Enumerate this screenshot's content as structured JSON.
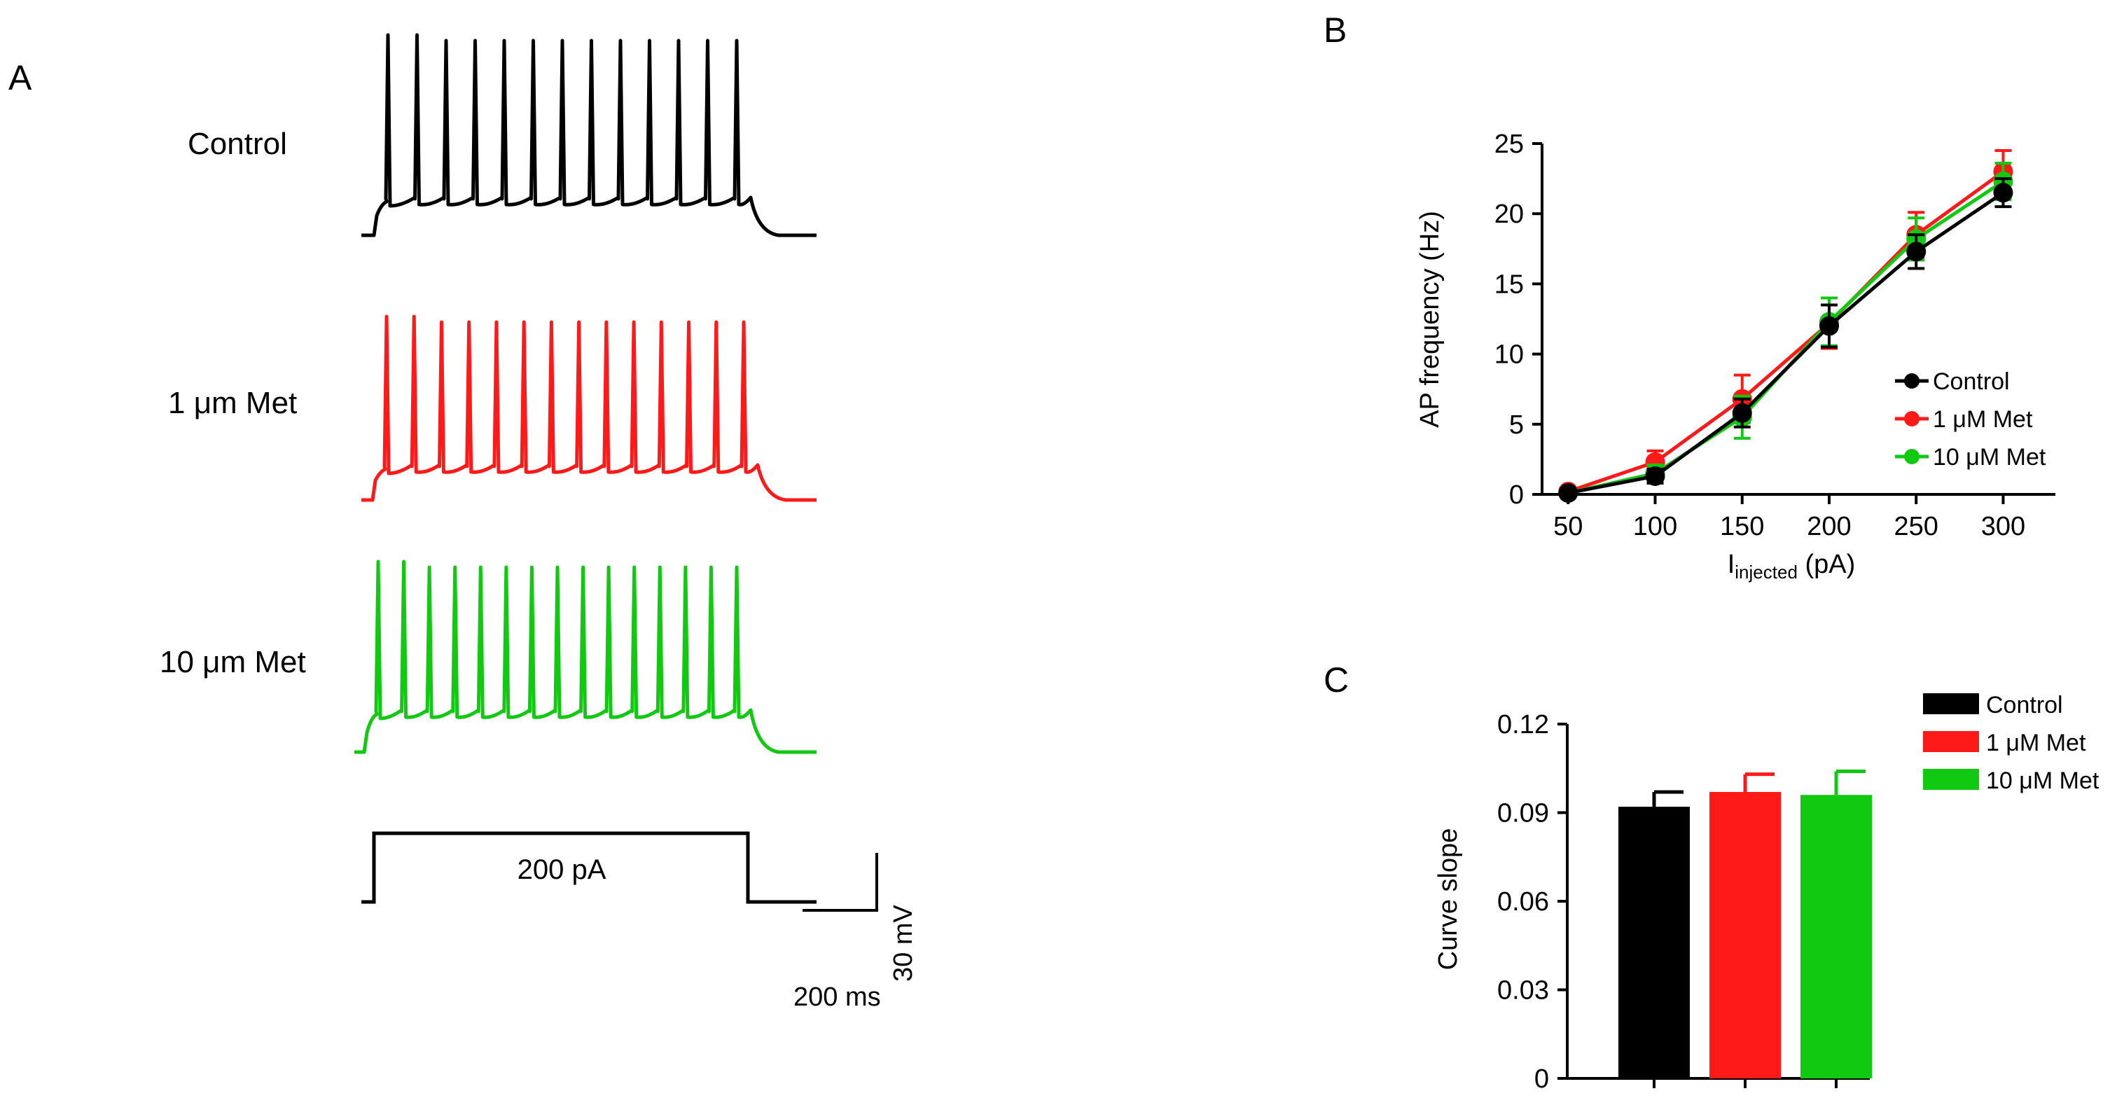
{
  "panel_labels": {
    "a": "A",
    "b": "B",
    "c": "C"
  },
  "colors": {
    "control": "#000000",
    "met1": "#ff1a1a",
    "met10": "#12c912"
  },
  "panel_a": {
    "traces": [
      {
        "label": "Control",
        "color_key": "control",
        "spikes": 13
      },
      {
        "label": "1 μm Met",
        "color_key": "met1",
        "spikes": 14
      },
      {
        "label": "10 μm Met",
        "color_key": "met10",
        "spikes": 15
      }
    ],
    "stimulus_label": "200 pA",
    "scale_time": "200 ms",
    "scale_voltage": "30 mV"
  },
  "chart_data": [
    {
      "type": "line",
      "panel": "B",
      "title": "",
      "xlabel_main": "I",
      "xlabel_sub": "injected",
      "xlabel_unit": " (pA)",
      "ylabel": "AP frequency (Hz)",
      "x": [
        50,
        100,
        150,
        200,
        250,
        300
      ],
      "xlim": [
        35,
        330
      ],
      "ylim": [
        0,
        25
      ],
      "yticks": [
        0,
        5,
        10,
        15,
        20,
        25
      ],
      "legend_position": "right",
      "series": [
        {
          "name": "Control",
          "color_key": "control",
          "values": [
            0.1,
            1.3,
            5.8,
            12.0,
            17.3,
            21.5
          ],
          "errors": [
            0.1,
            0.5,
            1.0,
            1.5,
            1.2,
            1.0
          ]
        },
        {
          "name": "1 μM Met",
          "color_key": "met1",
          "values": [
            0.2,
            2.3,
            6.8,
            12.2,
            18.5,
            23.0
          ],
          "errors": [
            0.1,
            0.8,
            1.7,
            1.8,
            1.6,
            1.5
          ]
        },
        {
          "name": "10 μM Met",
          "color_key": "met10",
          "values": [
            0.1,
            1.5,
            5.5,
            12.3,
            18.2,
            22.3
          ],
          "errors": [
            0.1,
            0.6,
            1.5,
            1.7,
            1.5,
            1.3
          ]
        }
      ]
    },
    {
      "type": "bar",
      "panel": "C",
      "title": "",
      "xlabel": "",
      "ylabel": "Curve slope",
      "categories": [
        "Control",
        "1 μM Met",
        "10 μM Met"
      ],
      "values": [
        0.092,
        0.097,
        0.096
      ],
      "errors": [
        0.005,
        0.006,
        0.008
      ],
      "color_keys": [
        "control",
        "met1",
        "met10"
      ],
      "ylim": [
        0,
        0.12
      ],
      "yticks": [
        "0",
        "0.03",
        "0.06",
        "0.09",
        "0.12"
      ],
      "ytick_values": [
        0,
        0.03,
        0.06,
        0.09,
        0.12
      ],
      "legend_position": "top-right"
    }
  ]
}
